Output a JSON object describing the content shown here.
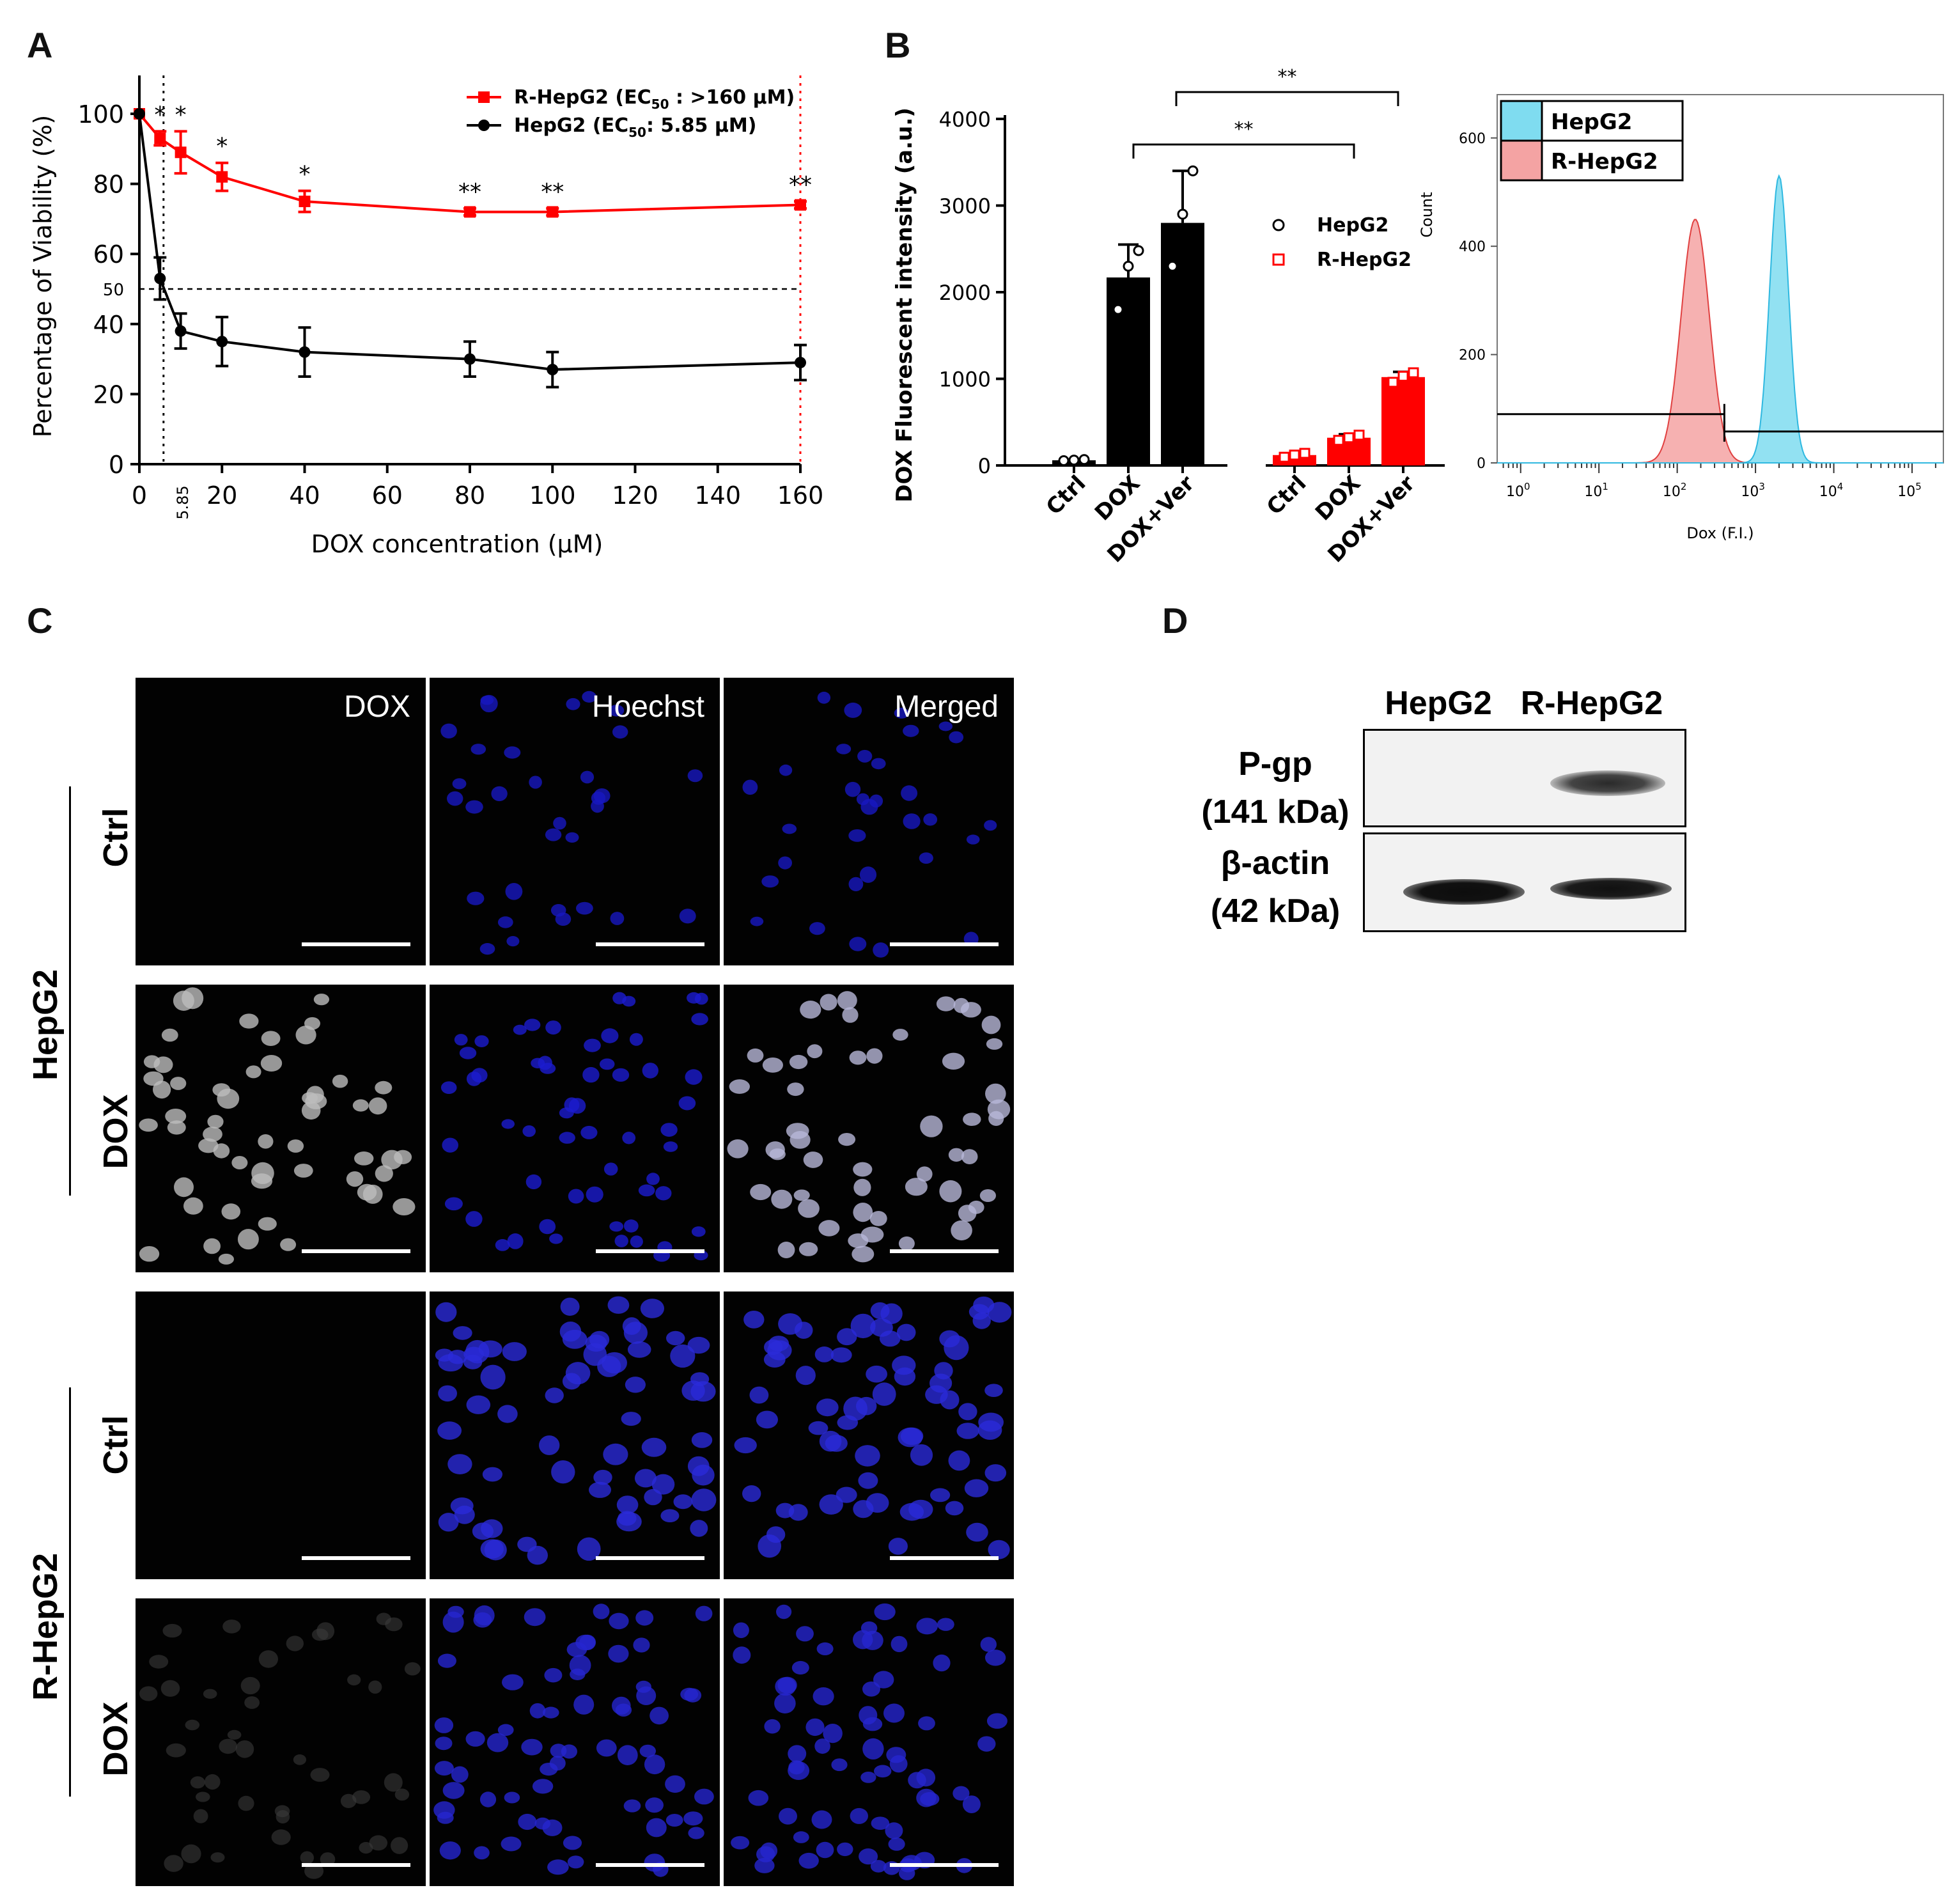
{
  "panels": {
    "A": "A",
    "B": "B",
    "C": "C",
    "D": "D"
  },
  "chart_data": [
    {
      "type": "line",
      "panel": "A",
      "xlabel": "DOX concentration (μM)",
      "ylabel": "Percentage of Viability (%)",
      "xlim": [
        0,
        160
      ],
      "ylim": [
        0,
        100
      ],
      "x_ticks": [
        "0",
        "20",
        "40",
        "60",
        "80",
        "100",
        "120",
        "140",
        "160"
      ],
      "y_ticks": [
        "0",
        "20",
        "40",
        "60",
        "80",
        "100"
      ],
      "ref_line_y_label": "50",
      "ref_line_x_label": "5.85",
      "series": [
        {
          "name": "R-HepG2 (EC50 : >160 μM)",
          "color": "#ff0000",
          "x": [
            0,
            5,
            10,
            20,
            40,
            80,
            100,
            160
          ],
          "y": [
            100,
            93,
            89,
            82,
            75,
            72,
            72,
            74
          ],
          "err": [
            0,
            2,
            6,
            4,
            3,
            1,
            1,
            1
          ],
          "sig": [
            "",
            "*",
            "*",
            "*",
            "*",
            "**",
            "**",
            "**"
          ]
        },
        {
          "name": "HepG2 (EC50: 5.85 μM)",
          "color": "#000000",
          "x": [
            0,
            5,
            10,
            20,
            40,
            80,
            100,
            160
          ],
          "y": [
            100,
            53,
            38,
            35,
            32,
            30,
            27,
            29
          ],
          "err": [
            0,
            6,
            5,
            7,
            7,
            5,
            5,
            5
          ]
        }
      ],
      "legend": {
        "r_hepg2": "R-HepG2 (EC",
        "r_hepg2_sub": "50",
        "r_hepg2_tail": " : >160 μM)",
        "hepg2": "HepG2 (EC",
        "hepg2_sub": "50",
        "hepg2_tail": ": 5.85 μM)"
      },
      "legend_position": "top-right"
    },
    {
      "type": "bar",
      "panel": "B",
      "ylabel": "DOX Fluorescent intensity (a.u.)",
      "ylim": [
        0,
        4000
      ],
      "y_ticks": [
        "0",
        "1000",
        "2000",
        "3000",
        "4000"
      ],
      "categories": [
        "Ctrl",
        "DOX",
        "DOX+Ver",
        "Ctrl",
        "DOX",
        "DOX+Ver"
      ],
      "groups": [
        "HepG2",
        "HepG2",
        "HepG2",
        "R-HepG2",
        "R-HepG2",
        "R-HepG2"
      ],
      "values": [
        60,
        2170,
        2800,
        120,
        320,
        1020
      ],
      "err": [
        0,
        380,
        600,
        20,
        40,
        60
      ],
      "points": [
        [
          55,
          62,
          68
        ],
        [
          1800,
          2300,
          2480
        ],
        [
          2300,
          2900,
          3400
        ],
        [
          95,
          120,
          140
        ],
        [
          290,
          320,
          350
        ],
        [
          960,
          1030,
          1070
        ]
      ],
      "legend": [
        "HepG2",
        "R-HepG2"
      ],
      "legend_position": "right",
      "significance": [
        "**",
        "**"
      ]
    },
    {
      "type": "histogram",
      "panel": "B-flow",
      "xlabel": "Dox (F.I.)",
      "ylabel": "Count",
      "y_ticks": [
        "0",
        "200",
        "400",
        "600"
      ],
      "x_ticks": [
        "10",
        "10",
        "10",
        "10",
        "10",
        "10"
      ],
      "x_tick_exponents": [
        "0",
        "1",
        "2",
        "3",
        "4",
        "5"
      ],
      "series": [
        {
          "name": "HepG2",
          "color": "#7fdcf0",
          "peak_x": 2000,
          "peak_count": 530
        },
        {
          "name": "R-HepG2",
          "color": "#f4a3a3",
          "peak_x": 170,
          "peak_count": 450
        }
      ],
      "legend_position": "top-left"
    }
  ],
  "panel_C": {
    "columns": [
      "DOX",
      "Hoechst",
      "Merged"
    ],
    "groups": [
      {
        "name": "HepG2",
        "rows": [
          "Ctrl",
          "DOX"
        ]
      },
      {
        "name": "R-HepG2",
        "rows": [
          "Ctrl",
          "DOX"
        ]
      }
    ]
  },
  "panel_D": {
    "lanes": [
      "HepG2",
      "R-HepG2"
    ],
    "bands": [
      {
        "label": "P-gp",
        "size": "(141 kDa)"
      },
      {
        "label": "β-actin",
        "size": "(42 kDa)"
      }
    ]
  }
}
